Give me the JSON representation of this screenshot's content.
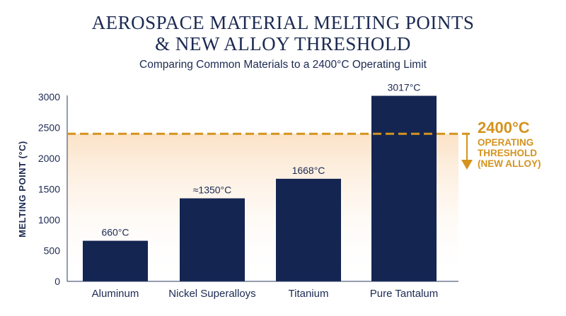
{
  "header": {
    "title_line1": "AEROSPACE MATERIAL MELTING POINTS",
    "title_line2": "& NEW ALLOY THRESHOLD",
    "subtitle": "Comparing Common Materials to a 2400°C Operating Limit"
  },
  "colors": {
    "bar": "#142552",
    "threshold": "#d4931e",
    "text": "#1c2a52"
  },
  "chart_data": {
    "type": "bar",
    "title": "AEROSPACE MATERIAL MELTING POINTS & NEW ALLOY THRESHOLD",
    "subtitle": "Comparing Common Materials to a 2400°C Operating Limit",
    "xlabel": "",
    "ylabel": "MELTING POINT (°C)",
    "ylim": [
      0,
      3000
    ],
    "yticks": [
      0,
      500,
      1000,
      1500,
      2000,
      2500,
      3000
    ],
    "grid": false,
    "categories": [
      "Aluminum",
      "Nickel Superalloys",
      "Titanium",
      "Pure Tantalum"
    ],
    "values": [
      660,
      1350,
      1668,
      3017
    ],
    "data_labels": [
      "660°C",
      "≈1350°C",
      "1668°C",
      "3017°C"
    ],
    "threshold": {
      "value": 2400,
      "value_label": "2400°C",
      "label_lines": [
        "OPERATING",
        "THRESHOLD",
        "(NEW ALLOY)"
      ]
    }
  }
}
